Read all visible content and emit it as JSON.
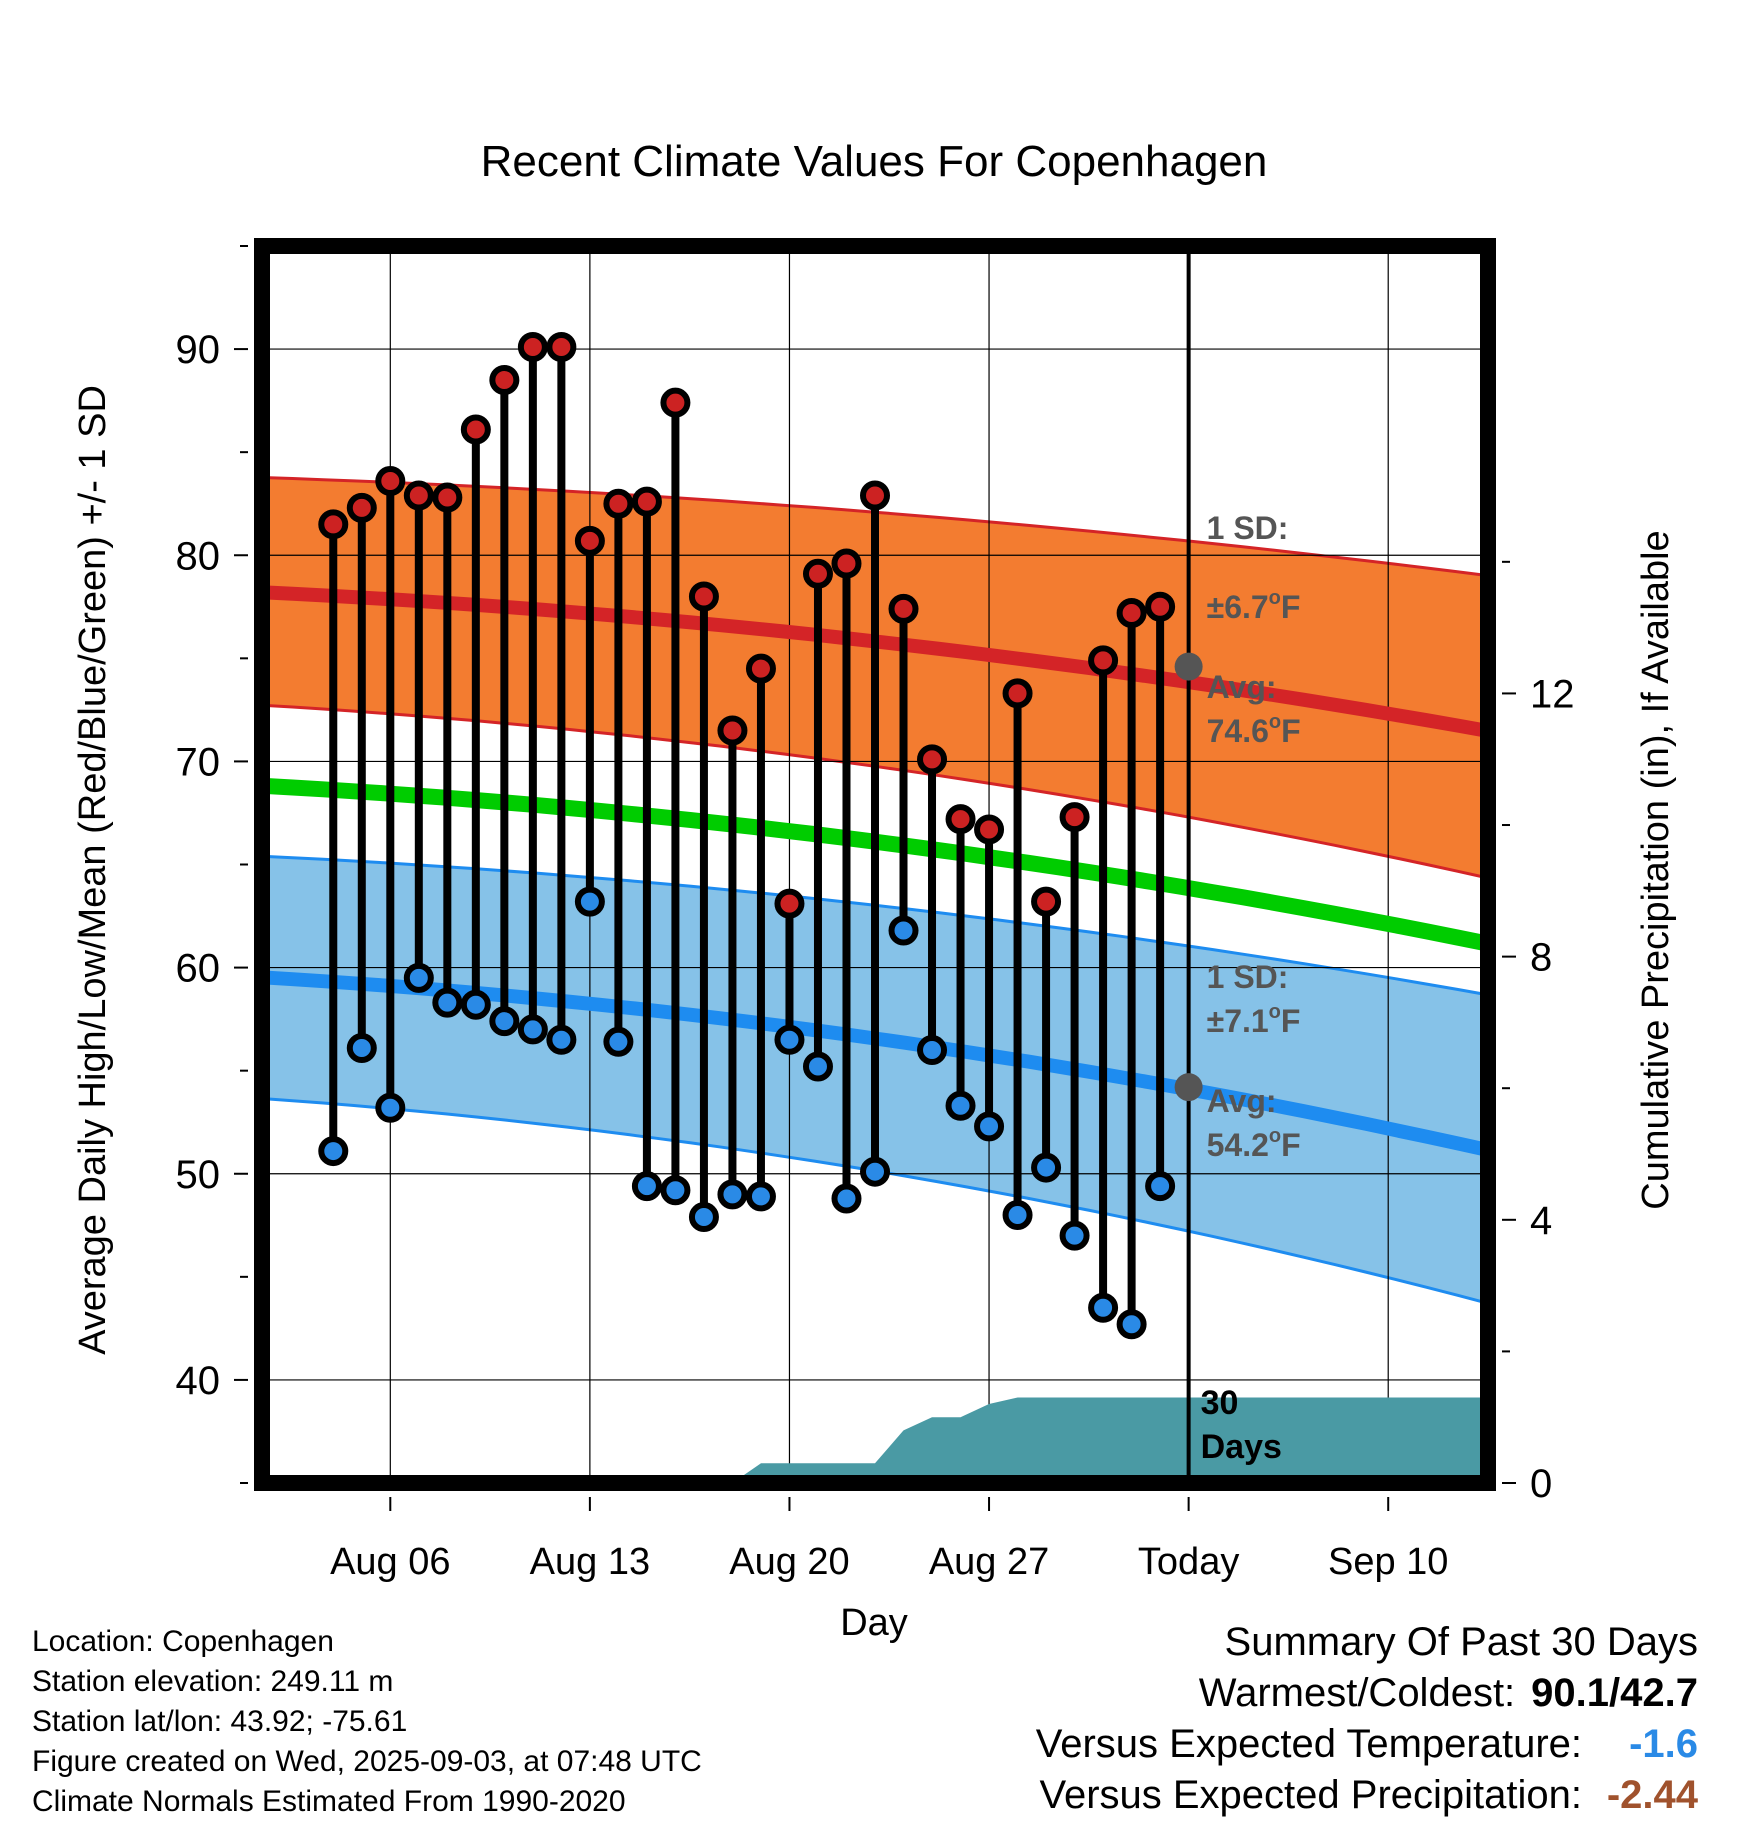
{
  "chart_data": {
    "type": "line",
    "title": "Recent Climate Values For Copenhagen",
    "xlabel": "Day",
    "ylabel_left": "Average Daily High/Low/Mean (Red/Blue/Green) +/- 1 SD",
    "ylabel_right": "Cumulative Precipitation (in), If Available",
    "ylim": [
      35,
      95
    ],
    "yticks": [
      40,
      50,
      60,
      70,
      80,
      90
    ],
    "y2lim": [
      0,
      18.8
    ],
    "y2ticks": [
      0,
      4,
      8,
      12
    ],
    "xlim": [
      -1.5,
      41.5
    ],
    "grid": true,
    "x_ticks": [
      {
        "x": 3,
        "label": "Aug 06"
      },
      {
        "x": 10,
        "label": "Aug 13"
      },
      {
        "x": 17,
        "label": "Aug 20"
      },
      {
        "x": 24,
        "label": "Aug 27"
      },
      {
        "x": 31,
        "label": "Today"
      },
      {
        "x": 38,
        "label": "Sep 10"
      }
    ],
    "today_x": 31,
    "today_label_line1": "30",
    "today_label_line2": "Days",
    "daily_x": [
      1,
      2,
      3,
      4,
      5,
      6,
      7,
      8,
      9,
      10,
      11,
      12,
      13,
      14,
      15,
      16,
      17,
      18,
      19,
      20,
      21,
      22,
      23,
      24,
      25,
      26,
      27,
      28,
      29,
      30
    ],
    "daily_high": [
      81.5,
      82.3,
      83.6,
      82.9,
      82.8,
      86.1,
      88.5,
      90.1,
      90.1,
      80.7,
      82.5,
      82.6,
      87.4,
      78.0,
      71.5,
      74.5,
      63.1,
      79.1,
      79.6,
      82.9,
      77.4,
      70.1,
      67.2,
      66.7,
      73.3,
      63.2,
      67.3,
      74.9,
      77.2,
      77.5
    ],
    "daily_low": [
      51.1,
      56.1,
      53.2,
      59.5,
      58.3,
      58.2,
      57.4,
      57.0,
      56.5,
      63.2,
      56.4,
      49.4,
      49.2,
      47.9,
      49.0,
      48.9,
      56.5,
      55.2,
      48.8,
      50.1,
      61.8,
      56.0,
      53.3,
      52.3,
      48.0,
      50.3,
      47.0,
      43.5,
      42.7,
      49.4
    ],
    "normal_x": [
      0,
      41
    ],
    "normal_high_mean": [
      78.1,
      71.6
    ],
    "normal_high_sd_text": "±6.7°F",
    "normal_high_upper": [
      83.7,
      79.1
    ],
    "normal_high_lower": [
      72.6,
      64.5
    ],
    "normal_mean": [
      68.7,
      61.3
    ],
    "normal_low_mean": [
      59.4,
      51.3
    ],
    "normal_low_sd_text": "±7.1°F",
    "normal_low_upper": [
      65.3,
      58.8
    ],
    "normal_low_lower": [
      53.5,
      43.9
    ],
    "today_high_avg": 74.6,
    "today_low_avg": 54.2,
    "precip_x": [
      15,
      16,
      17,
      18,
      19,
      20,
      21,
      22,
      23,
      24,
      25,
      26,
      27,
      28,
      29,
      30,
      31,
      41
    ],
    "precip_cum": [
      0,
      0.3,
      0.3,
      0.3,
      0.3,
      0.3,
      0.8,
      1.0,
      1.0,
      1.2,
      1.3,
      1.3,
      1.3,
      1.3,
      1.3,
      1.3,
      1.3,
      1.3
    ],
    "annotations": {
      "high_sd_label": "1 SD:",
      "high_sd_value": "±6.7",
      "high_avg_label": "Avg:",
      "high_avg_value": "74.6",
      "low_sd_label": "1 SD:",
      "low_sd_value": "±7.1",
      "low_avg_label": "Avg:",
      "low_avg_value": "54.2",
      "unit": "F"
    },
    "colors": {
      "high_band": "#f37c30",
      "high_line": "#d42427",
      "low_band": "#86c2e8",
      "low_line": "#1e8cf0",
      "mean_line": "#00cc00",
      "precip": "#4a9aa4",
      "high_marker": "#cc2222",
      "low_marker": "#2a8ae6",
      "avg_marker": "#555555",
      "annotation_text": "#555555"
    }
  },
  "footer": {
    "location": "Location: Copenhagen",
    "elevation": "Station elevation: 249.11 m",
    "latlon": "Station lat/lon: 43.92; -75.61",
    "created": "Figure created on Wed, 2025-09-03, at 07:48 UTC",
    "normals": "Climate Normals Estimated From 1990-2020"
  },
  "summary": {
    "title": "Summary Of Past 30 Days",
    "warm_cold_label": "Warmest/Coldest:",
    "warm_cold_value": "90.1/42.7",
    "temp_label": "Versus Expected Temperature:",
    "temp_value": "-1.6",
    "temp_color": "#2a8ae6",
    "precip_label": "Versus Expected Precipitation:",
    "precip_value": "-2.44",
    "precip_color": "#a0522d"
  }
}
